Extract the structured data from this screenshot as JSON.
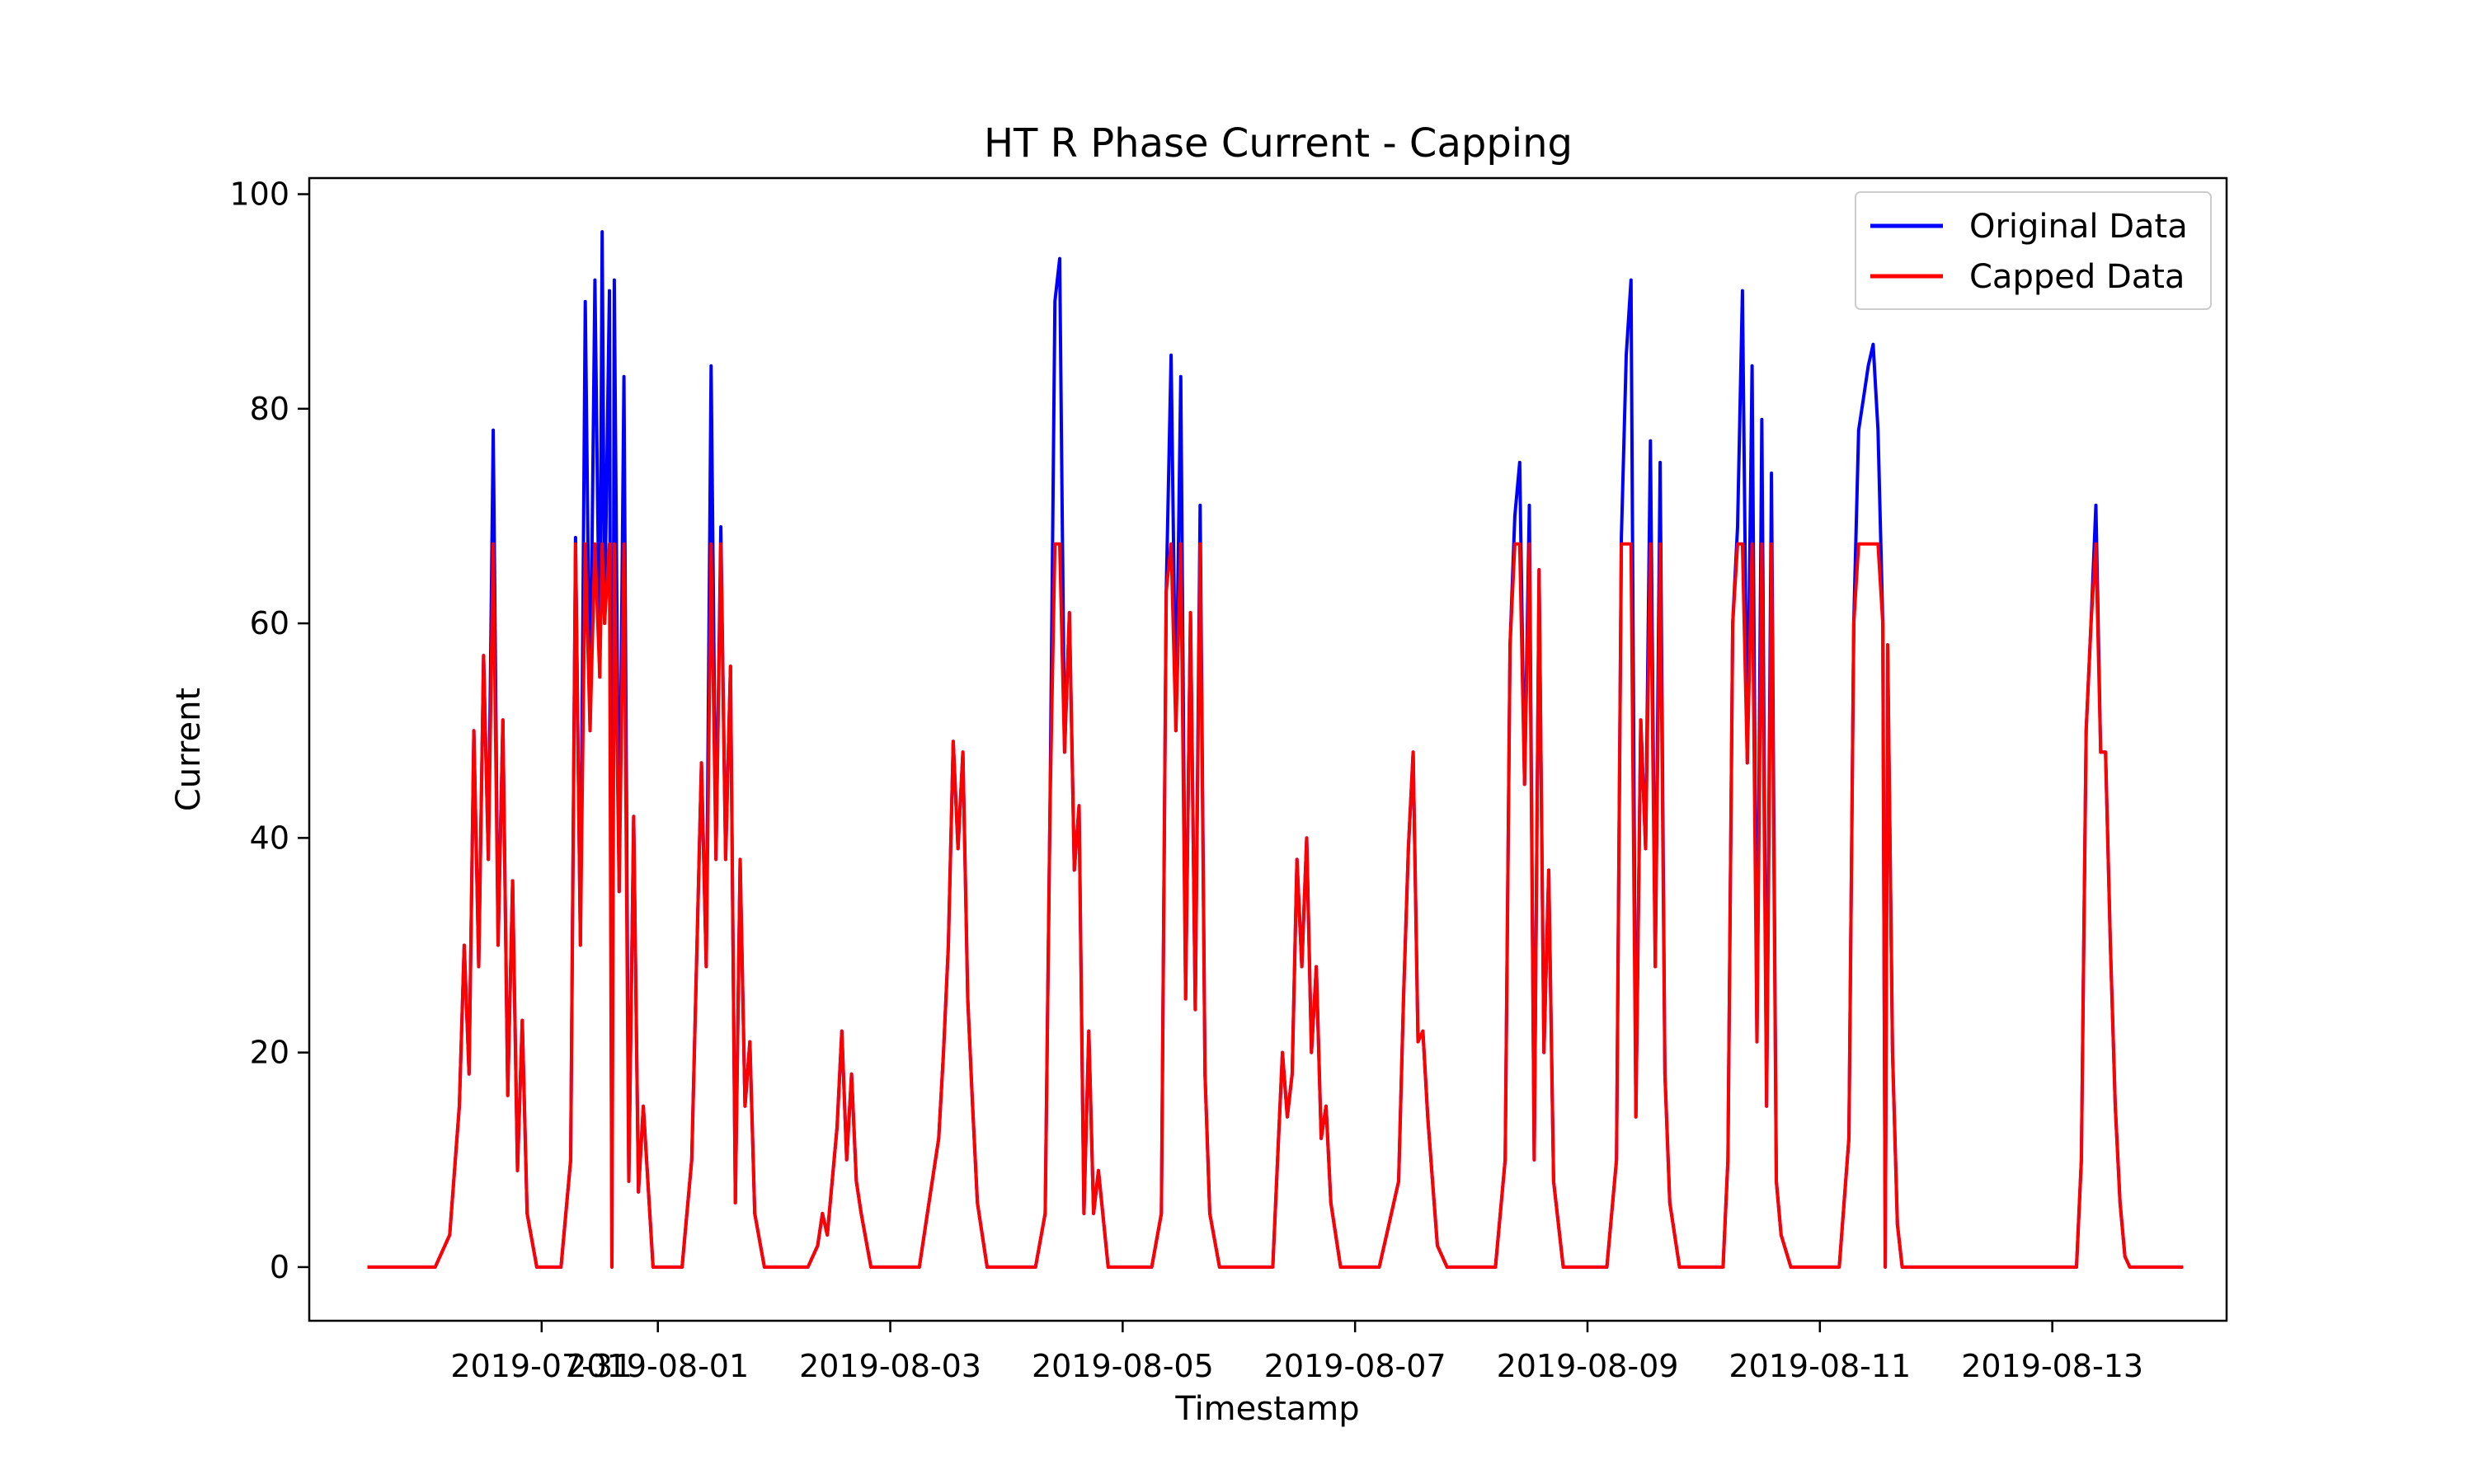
{
  "chart_data": {
    "type": "line",
    "title": "HT R Phase Current - Capping",
    "xlabel": "Timestamp",
    "ylabel": "Current",
    "x_type": "datetime",
    "xlim": [
      "2019-07-29T00:00",
      "2019-08-14T12:00"
    ],
    "ylim": [
      -5,
      101.5
    ],
    "x_ticks": [
      "2019-07-31",
      "2019-08-01",
      "2019-08-03",
      "2019-08-05",
      "2019-08-07",
      "2019-08-09",
      "2019-08-11",
      "2019-08-13"
    ],
    "y_ticks": [
      0,
      20,
      40,
      60,
      80,
      100
    ],
    "cap_value": 67.4,
    "grid": false,
    "legend_position": "upper right",
    "series": [
      {
        "name": "Original Data",
        "color": "#0000ff",
        "points": [
          [
            "2019-07-29T12:00",
            0
          ],
          [
            "2019-07-30T02:00",
            0
          ],
          [
            "2019-07-30T05:00",
            3
          ],
          [
            "2019-07-30T07:00",
            15
          ],
          [
            "2019-07-30T08:00",
            30
          ],
          [
            "2019-07-30T09:00",
            18
          ],
          [
            "2019-07-30T10:00",
            50
          ],
          [
            "2019-07-30T11:00",
            28
          ],
          [
            "2019-07-30T12:00",
            57
          ],
          [
            "2019-07-30T13:00",
            38
          ],
          [
            "2019-07-30T14:00",
            78
          ],
          [
            "2019-07-30T15:00",
            30
          ],
          [
            "2019-07-30T16:00",
            51
          ],
          [
            "2019-07-30T17:00",
            16
          ],
          [
            "2019-07-30T18:00",
            36
          ],
          [
            "2019-07-30T19:00",
            9
          ],
          [
            "2019-07-30T20:00",
            23
          ],
          [
            "2019-07-30T21:00",
            5
          ],
          [
            "2019-07-30T23:00",
            0
          ],
          [
            "2019-07-31T04:00",
            0
          ],
          [
            "2019-07-31T06:00",
            10
          ],
          [
            "2019-07-31T07:00",
            68
          ],
          [
            "2019-07-31T08:00",
            30
          ],
          [
            "2019-07-31T09:00",
            90
          ],
          [
            "2019-07-31T10:00",
            50
          ],
          [
            "2019-07-31T11:00",
            92
          ],
          [
            "2019-07-31T12:00",
            55
          ],
          [
            "2019-07-31T12:30",
            96.5
          ],
          [
            "2019-07-31T13:00",
            60
          ],
          [
            "2019-07-31T14:00",
            91
          ],
          [
            "2019-07-31T14:30",
            0
          ],
          [
            "2019-07-31T15:00",
            92
          ],
          [
            "2019-07-31T16:00",
            35
          ],
          [
            "2019-07-31T17:00",
            83
          ],
          [
            "2019-07-31T18:00",
            8
          ],
          [
            "2019-07-31T19:00",
            42
          ],
          [
            "2019-07-31T20:00",
            7
          ],
          [
            "2019-07-31T21:00",
            15
          ],
          [
            "2019-07-31T23:00",
            0
          ],
          [
            "2019-08-01T05:00",
            0
          ],
          [
            "2019-08-01T07:00",
            10
          ],
          [
            "2019-08-01T09:00",
            47
          ],
          [
            "2019-08-01T10:00",
            28
          ],
          [
            "2019-08-01T11:00",
            84
          ],
          [
            "2019-08-01T12:00",
            38
          ],
          [
            "2019-08-01T13:00",
            69
          ],
          [
            "2019-08-01T14:00",
            38
          ],
          [
            "2019-08-01T15:00",
            56
          ],
          [
            "2019-08-01T16:00",
            6
          ],
          [
            "2019-08-01T17:00",
            38
          ],
          [
            "2019-08-01T18:00",
            15
          ],
          [
            "2019-08-01T19:00",
            21
          ],
          [
            "2019-08-01T20:00",
            5
          ],
          [
            "2019-08-01T22:00",
            0
          ],
          [
            "2019-08-02T07:00",
            0
          ],
          [
            "2019-08-02T09:00",
            2
          ],
          [
            "2019-08-02T10:00",
            5
          ],
          [
            "2019-08-02T11:00",
            3
          ],
          [
            "2019-08-02T12:00",
            8
          ],
          [
            "2019-08-02T13:00",
            13
          ],
          [
            "2019-08-02T14:00",
            22
          ],
          [
            "2019-08-02T15:00",
            10
          ],
          [
            "2019-08-02T16:00",
            18
          ],
          [
            "2019-08-02T17:00",
            8
          ],
          [
            "2019-08-02T18:00",
            5
          ],
          [
            "2019-08-02T20:00",
            0
          ],
          [
            "2019-08-03T06:00",
            0
          ],
          [
            "2019-08-03T08:00",
            6
          ],
          [
            "2019-08-03T10:00",
            12
          ],
          [
            "2019-08-03T11:00",
            20
          ],
          [
            "2019-08-03T12:00",
            30
          ],
          [
            "2019-08-03T13:00",
            49
          ],
          [
            "2019-08-03T14:00",
            39
          ],
          [
            "2019-08-03T15:00",
            48
          ],
          [
            "2019-08-03T16:00",
            25
          ],
          [
            "2019-08-03T17:00",
            15
          ],
          [
            "2019-08-03T18:00",
            6
          ],
          [
            "2019-08-03T20:00",
            0
          ],
          [
            "2019-08-04T06:00",
            0
          ],
          [
            "2019-08-04T08:00",
            5
          ],
          [
            "2019-08-04T09:00",
            43
          ],
          [
            "2019-08-04T10:00",
            90
          ],
          [
            "2019-08-04T11:00",
            94
          ],
          [
            "2019-08-04T12:00",
            48
          ],
          [
            "2019-08-04T13:00",
            61
          ],
          [
            "2019-08-04T14:00",
            37
          ],
          [
            "2019-08-04T15:00",
            43
          ],
          [
            "2019-08-04T16:00",
            5
          ],
          [
            "2019-08-04T17:00",
            22
          ],
          [
            "2019-08-04T18:00",
            5
          ],
          [
            "2019-08-04T19:00",
            9
          ],
          [
            "2019-08-04T21:00",
            0
          ],
          [
            "2019-08-05T06:00",
            0
          ],
          [
            "2019-08-05T08:00",
            5
          ],
          [
            "2019-08-05T09:00",
            63
          ],
          [
            "2019-08-05T10:00",
            85
          ],
          [
            "2019-08-05T11:00",
            50
          ],
          [
            "2019-08-05T12:00",
            83
          ],
          [
            "2019-08-05T13:00",
            25
          ],
          [
            "2019-08-05T14:00",
            61
          ],
          [
            "2019-08-05T15:00",
            24
          ],
          [
            "2019-08-05T16:00",
            71
          ],
          [
            "2019-08-05T17:00",
            18
          ],
          [
            "2019-08-05T18:00",
            5
          ],
          [
            "2019-08-05T20:00",
            0
          ],
          [
            "2019-08-06T07:00",
            0
          ],
          [
            "2019-08-06T08:00",
            10
          ],
          [
            "2019-08-06T09:00",
            20
          ],
          [
            "2019-08-06T10:00",
            14
          ],
          [
            "2019-08-06T11:00",
            18
          ],
          [
            "2019-08-06T12:00",
            38
          ],
          [
            "2019-08-06T13:00",
            28
          ],
          [
            "2019-08-06T14:00",
            40
          ],
          [
            "2019-08-06T15:00",
            20
          ],
          [
            "2019-08-06T16:00",
            28
          ],
          [
            "2019-08-06T17:00",
            12
          ],
          [
            "2019-08-06T18:00",
            15
          ],
          [
            "2019-08-06T19:00",
            6
          ],
          [
            "2019-08-06T21:00",
            0
          ],
          [
            "2019-08-07T05:00",
            0
          ],
          [
            "2019-08-07T07:00",
            4
          ],
          [
            "2019-08-07T09:00",
            8
          ],
          [
            "2019-08-07T10:00",
            25
          ],
          [
            "2019-08-07T11:00",
            39
          ],
          [
            "2019-08-07T12:00",
            48
          ],
          [
            "2019-08-07T13:00",
            21
          ],
          [
            "2019-08-07T14:00",
            22
          ],
          [
            "2019-08-07T15:00",
            14
          ],
          [
            "2019-08-07T16:00",
            8
          ],
          [
            "2019-08-07T17:00",
            2
          ],
          [
            "2019-08-07T19:00",
            0
          ],
          [
            "2019-08-08T05:00",
            0
          ],
          [
            "2019-08-08T07:00",
            10
          ],
          [
            "2019-08-08T08:00",
            58
          ],
          [
            "2019-08-08T09:00",
            70
          ],
          [
            "2019-08-08T10:00",
            75
          ],
          [
            "2019-08-08T11:00",
            45
          ],
          [
            "2019-08-08T12:00",
            71
          ],
          [
            "2019-08-08T13:00",
            10
          ],
          [
            "2019-08-08T14:00",
            65
          ],
          [
            "2019-08-08T15:00",
            20
          ],
          [
            "2019-08-08T16:00",
            37
          ],
          [
            "2019-08-08T17:00",
            8
          ],
          [
            "2019-08-08T19:00",
            0
          ],
          [
            "2019-08-09T04:00",
            0
          ],
          [
            "2019-08-09T06:00",
            10
          ],
          [
            "2019-08-09T07:00",
            68
          ],
          [
            "2019-08-09T08:00",
            85
          ],
          [
            "2019-08-09T09:00",
            92
          ],
          [
            "2019-08-09T10:00",
            14
          ],
          [
            "2019-08-09T11:00",
            51
          ],
          [
            "2019-08-09T12:00",
            39
          ],
          [
            "2019-08-09T13:00",
            77
          ],
          [
            "2019-08-09T14:00",
            28
          ],
          [
            "2019-08-09T15:00",
            75
          ],
          [
            "2019-08-09T16:00",
            18
          ],
          [
            "2019-08-09T17:00",
            6
          ],
          [
            "2019-08-09T19:00",
            0
          ],
          [
            "2019-08-10T04:00",
            0
          ],
          [
            "2019-08-10T05:00",
            10
          ],
          [
            "2019-08-10T06:00",
            60
          ],
          [
            "2019-08-10T07:00",
            69
          ],
          [
            "2019-08-10T08:00",
            91
          ],
          [
            "2019-08-10T09:00",
            47
          ],
          [
            "2019-08-10T10:00",
            84
          ],
          [
            "2019-08-10T11:00",
            21
          ],
          [
            "2019-08-10T12:00",
            79
          ],
          [
            "2019-08-10T13:00",
            15
          ],
          [
            "2019-08-10T14:00",
            74
          ],
          [
            "2019-08-10T15:00",
            8
          ],
          [
            "2019-08-10T16:00",
            3
          ],
          [
            "2019-08-10T18:00",
            0
          ],
          [
            "2019-08-11T04:00",
            0
          ],
          [
            "2019-08-11T06:00",
            12
          ],
          [
            "2019-08-11T07:00",
            60
          ],
          [
            "2019-08-11T08:00",
            78
          ],
          [
            "2019-08-11T09:00",
            81
          ],
          [
            "2019-08-11T10:00",
            84
          ],
          [
            "2019-08-11T11:00",
            86
          ],
          [
            "2019-08-11T12:00",
            78
          ],
          [
            "2019-08-11T13:00",
            60
          ],
          [
            "2019-08-11T13:30",
            0
          ],
          [
            "2019-08-11T14:00",
            58
          ],
          [
            "2019-08-11T15:00",
            20
          ],
          [
            "2019-08-11T16:00",
            4
          ],
          [
            "2019-08-11T17:00",
            0
          ],
          [
            "2019-08-13T05:00",
            0
          ],
          [
            "2019-08-13T06:00",
            10
          ],
          [
            "2019-08-13T07:00",
            50
          ],
          [
            "2019-08-13T08:00",
            60
          ],
          [
            "2019-08-13T09:00",
            71
          ],
          [
            "2019-08-13T10:00",
            48
          ],
          [
            "2019-08-13T11:00",
            48
          ],
          [
            "2019-08-13T12:00",
            30
          ],
          [
            "2019-08-13T13:00",
            15
          ],
          [
            "2019-08-13T14:00",
            6
          ],
          [
            "2019-08-13T15:00",
            1
          ],
          [
            "2019-08-13T16:00",
            0
          ],
          [
            "2019-08-14T03:00",
            0
          ]
        ]
      },
      {
        "name": "Capped Data",
        "color": "#ff0000",
        "capped_from": "Original Data"
      }
    ]
  }
}
